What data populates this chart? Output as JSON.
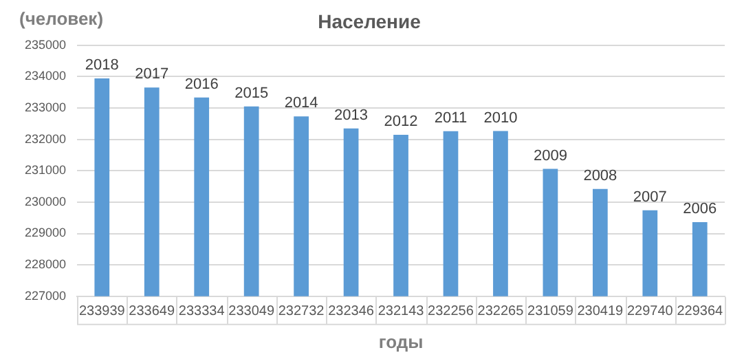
{
  "chart_data": {
    "type": "bar",
    "title": "Население",
    "ylabel": "(человек)",
    "xlabel": "годы",
    "categories": [
      "2018",
      "2017",
      "2016",
      "2015",
      "2014",
      "2013",
      "2012",
      "2011",
      "2010",
      "2009",
      "2008",
      "2007",
      "2006"
    ],
    "values": [
      233939,
      233649,
      233334,
      233049,
      232732,
      232346,
      232143,
      232256,
      232265,
      231059,
      230419,
      229740,
      229364
    ],
    "data_labels": true,
    "color": "#5b9bd5",
    "ylim": [
      227000,
      235000
    ],
    "yticks": [
      227000,
      228000,
      229000,
      230000,
      231000,
      232000,
      233000,
      234000,
      235000
    ],
    "grid": "y",
    "legend": false
  }
}
